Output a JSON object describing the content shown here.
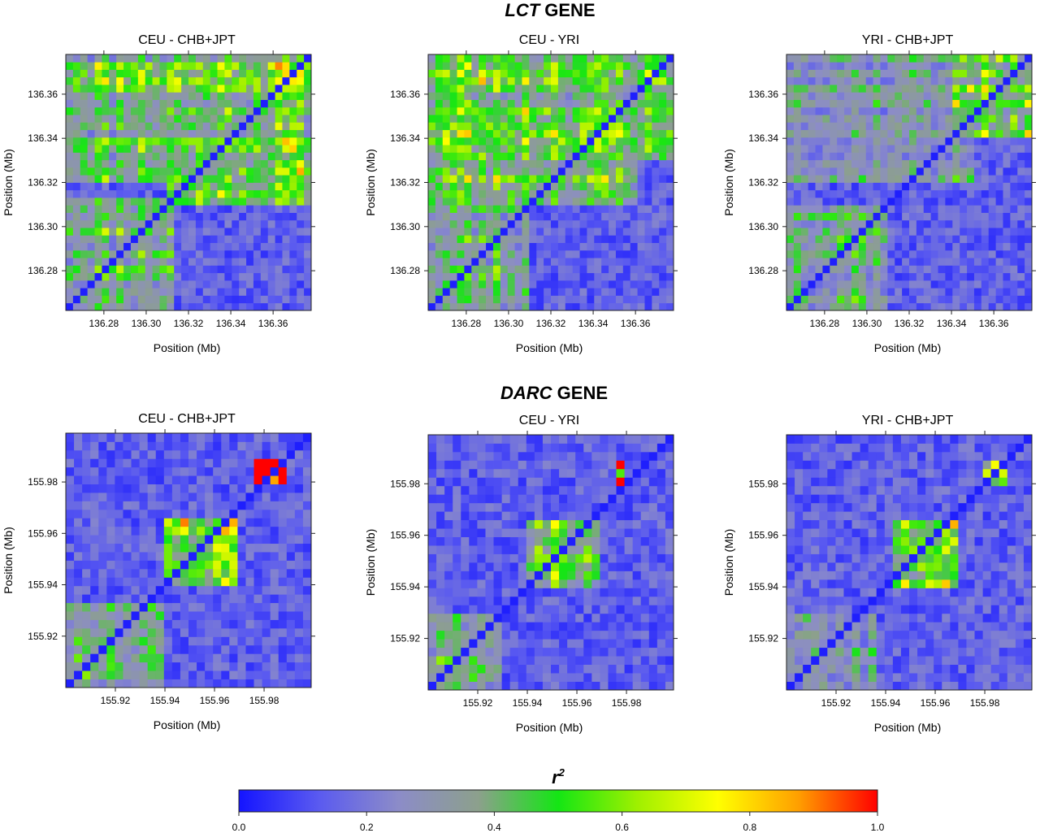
{
  "gene_titles": [
    {
      "italic": "LCT",
      "rest": " GENE"
    },
    {
      "italic": "DARC",
      "rest": " GENE"
    }
  ],
  "colorbar": {
    "label_base": "r",
    "label_exp": "2",
    "ticks": [
      "0.0",
      "0.2",
      "0.4",
      "0.6",
      "0.8",
      "1.0"
    ],
    "stops": [
      "#1414ff",
      "#5a5af0",
      "#8c8cc8",
      "#8ca08c",
      "#14e614",
      "#a0f000",
      "#ffff00",
      "#ffa000",
      "#ff0000"
    ]
  },
  "chart_data": [
    {
      "type": "heatmap",
      "gene": "LCT",
      "title": "CEU - CHB+JPT",
      "xlabel": "Position (Mb)",
      "ylabel": "Position (Mb)",
      "xlim": [
        136.262,
        136.378
      ],
      "ylim": [
        136.262,
        136.378
      ],
      "ticks": [
        136.28,
        136.3,
        136.32,
        136.34,
        136.36
      ],
      "tick_labels": [
        "136.28",
        "136.30",
        "136.32",
        "136.34",
        "136.36"
      ],
      "grid_size": 34,
      "seed": 11,
      "blocks": [
        {
          "x": [
            136.262,
            136.312
          ],
          "y": [
            136.262,
            136.312
          ],
          "level": 0.45
        },
        {
          "x": [
            136.31,
            136.378
          ],
          "y": [
            136.31,
            136.378
          ],
          "level": 0.55
        },
        {
          "x": [
            136.262,
            136.34
          ],
          "y": [
            136.32,
            136.378
          ],
          "level": 0.5
        }
      ]
    },
    {
      "type": "heatmap",
      "gene": "LCT",
      "title": "CEU - YRI",
      "xlabel": "Position (Mb)",
      "ylabel": "Position (Mb)",
      "xlim": [
        136.262,
        136.378
      ],
      "ylim": [
        136.262,
        136.378
      ],
      "ticks": [
        136.28,
        136.3,
        136.32,
        136.34,
        136.36
      ],
      "tick_labels": [
        "136.28",
        "136.30",
        "136.32",
        "136.34",
        "136.36"
      ],
      "grid_size": 34,
      "seed": 23,
      "blocks": [
        {
          "x": [
            136.262,
            136.31
          ],
          "y": [
            136.262,
            136.31
          ],
          "level": 0.4
        },
        {
          "x": [
            136.262,
            136.36
          ],
          "y": [
            136.31,
            136.378
          ],
          "level": 0.55
        },
        {
          "x": [
            136.33,
            136.378
          ],
          "y": [
            136.33,
            136.378
          ],
          "level": 0.5
        }
      ]
    },
    {
      "type": "heatmap",
      "gene": "LCT",
      "title": "YRI - CHB+JPT",
      "xlabel": "Position (Mb)",
      "ylabel": "Position (Mb)",
      "xlim": [
        136.262,
        136.378
      ],
      "ylim": [
        136.262,
        136.378
      ],
      "ticks": [
        136.28,
        136.3,
        136.32,
        136.34,
        136.36
      ],
      "tick_labels": [
        "136.28",
        "136.30",
        "136.32",
        "136.34",
        "136.36"
      ],
      "grid_size": 34,
      "seed": 37,
      "blocks": [
        {
          "x": [
            136.262,
            136.31
          ],
          "y": [
            136.262,
            136.31
          ],
          "level": 0.45
        },
        {
          "x": [
            136.262,
            136.35
          ],
          "y": [
            136.32,
            136.378
          ],
          "level": 0.35
        },
        {
          "x": [
            136.34,
            136.378
          ],
          "y": [
            136.34,
            136.378
          ],
          "level": 0.5
        }
      ]
    },
    {
      "type": "heatmap",
      "gene": "DARC",
      "title": "CEU - CHB+JPT",
      "xlabel": "Position (Mb)",
      "ylabel": "Position (Mb)",
      "xlim": [
        155.9,
        155.999
      ],
      "ylim": [
        155.9,
        155.999
      ],
      "ticks": [
        155.92,
        155.94,
        155.96,
        155.98
      ],
      "tick_labels": [
        "155.92",
        "155.94",
        "155.96",
        "155.98"
      ],
      "grid_size": 30,
      "seed": 51,
      "blocks": [
        {
          "x": [
            155.9,
            155.938
          ],
          "y": [
            155.9,
            155.932
          ],
          "level": 0.4
        },
        {
          "x": [
            155.938,
            155.968
          ],
          "y": [
            155.94,
            155.965
          ],
          "level": 0.6
        },
        {
          "x": [
            155.975,
            155.99
          ],
          "y": [
            155.98,
            155.99
          ],
          "level": 0.9
        }
      ]
    },
    {
      "type": "heatmap",
      "gene": "DARC",
      "title": "CEU - YRI",
      "xlabel": "Position (Mb)",
      "ylabel": "Position (Mb)",
      "xlim": [
        155.9,
        155.999
      ],
      "ylim": [
        155.9,
        155.999
      ],
      "ticks": [
        155.92,
        155.94,
        155.96,
        155.98
      ],
      "tick_labels": [
        "155.92",
        "155.94",
        "155.96",
        "155.98"
      ],
      "grid_size": 30,
      "seed": 63,
      "blocks": [
        {
          "x": [
            155.9,
            155.93
          ],
          "y": [
            155.9,
            155.93
          ],
          "level": 0.35
        },
        {
          "x": [
            155.938,
            155.968
          ],
          "y": [
            155.94,
            155.965
          ],
          "level": 0.55
        },
        {
          "x": [
            155.975,
            155.98
          ],
          "y": [
            155.975,
            155.99
          ],
          "level": 0.85
        }
      ]
    },
    {
      "type": "heatmap",
      "gene": "DARC",
      "title": "YRI - CHB+JPT",
      "xlabel": "Position (Mb)",
      "ylabel": "Position (Mb)",
      "xlim": [
        155.9,
        155.999
      ],
      "ylim": [
        155.9,
        155.999
      ],
      "ticks": [
        155.92,
        155.94,
        155.96,
        155.98
      ],
      "tick_labels": [
        "155.92",
        "155.94",
        "155.96",
        "155.98"
      ],
      "grid_size": 30,
      "seed": 77,
      "blocks": [
        {
          "x": [
            155.9,
            155.935
          ],
          "y": [
            155.9,
            155.93
          ],
          "level": 0.35
        },
        {
          "x": [
            155.943,
            155.97
          ],
          "y": [
            155.94,
            155.965
          ],
          "level": 0.55
        },
        {
          "x": [
            155.98,
            155.99
          ],
          "y": [
            155.98,
            155.99
          ],
          "level": 0.9
        }
      ]
    }
  ]
}
